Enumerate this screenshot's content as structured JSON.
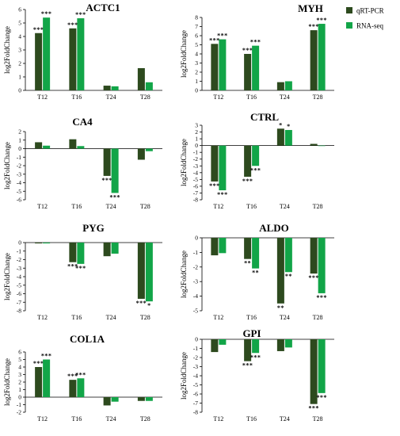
{
  "colors": {
    "qrt_pcr": "#2d4a1e",
    "rna_seq": "#12a548"
  },
  "legend": [
    {
      "name": "qRT-PCR",
      "color": "#2d4a1e"
    },
    {
      "name": "RNA-seq",
      "color": "#12a548"
    }
  ],
  "chart_data": [
    {
      "type": "bar",
      "title": "ACTC1",
      "ylabel": "log2FoldChange",
      "categories": [
        "T12",
        "T16",
        "T24",
        "T28"
      ],
      "ylim": [
        0,
        6
      ],
      "yticks": [
        0,
        1,
        2,
        3,
        4,
        5,
        6
      ],
      "series": [
        {
          "name": "qRT-PCR",
          "values": [
            4.25,
            4.6,
            0.35,
            1.65
          ],
          "sig": [
            "***",
            "***",
            "",
            ""
          ]
        },
        {
          "name": "RNA-seq",
          "values": [
            5.4,
            5.35,
            0.3,
            0.6
          ],
          "sig": [
            "***",
            "***",
            "",
            ""
          ]
        }
      ]
    },
    {
      "type": "bar",
      "title": "MYH",
      "ylabel": "log2FoldChange",
      "categories": [
        "T12",
        "T16",
        "T24",
        "T28"
      ],
      "ylim": [
        0,
        8
      ],
      "yticks": [
        0,
        1,
        2,
        3,
        4,
        5,
        6,
        7,
        8
      ],
      "series": [
        {
          "name": "qRT-PCR",
          "values": [
            5.1,
            4.0,
            0.9,
            6.6
          ],
          "sig": [
            "***",
            "***",
            "",
            "***"
          ]
        },
        {
          "name": "RNA-seq",
          "values": [
            5.6,
            4.9,
            1.0,
            7.3
          ],
          "sig": [
            "***",
            "***",
            "",
            "***"
          ]
        }
      ]
    },
    {
      "type": "bar",
      "title": "CA4",
      "ylabel": "log2FoldChange",
      "categories": [
        "T12",
        "T16",
        "T24",
        "T28"
      ],
      "ylim": [
        -6,
        2
      ],
      "yticks": [
        2,
        1,
        0,
        -1,
        -2,
        -3,
        -4,
        -5,
        -6
      ],
      "series": [
        {
          "name": "qRT-PCR",
          "values": [
            0.75,
            1.1,
            -3.2,
            -1.3
          ],
          "sig": [
            "",
            "",
            "***",
            ""
          ]
        },
        {
          "name": "RNA-seq",
          "values": [
            0.35,
            0.3,
            -5.2,
            -0.3
          ],
          "sig": [
            "",
            "",
            "***",
            ""
          ]
        }
      ]
    },
    {
      "type": "bar",
      "title": "CTRL",
      "ylabel": "log2FoldChange",
      "categories": [
        "T12",
        "T16",
        "T24",
        "T28"
      ],
      "ylim": [
        -8,
        3
      ],
      "yticks": [
        3,
        2,
        1,
        0,
        -1,
        -2,
        -3,
        -4,
        -5,
        -6,
        -7,
        -8
      ],
      "series": [
        {
          "name": "qRT-PCR",
          "values": [
            -5.3,
            -4.6,
            2.5,
            0.25
          ],
          "sig": [
            "***",
            "***",
            "*",
            ""
          ]
        },
        {
          "name": "RNA-seq",
          "values": [
            -6.6,
            -3.0,
            2.3,
            0.0
          ],
          "sig": [
            "***",
            "***",
            "*",
            ""
          ]
        }
      ]
    },
    {
      "type": "bar",
      "title": "PYG",
      "ylabel": "log2FoldChange",
      "categories": [
        "T12",
        "T16",
        "T24",
        "T28"
      ],
      "ylim": [
        -8,
        0
      ],
      "yticks": [
        0,
        -1,
        -2,
        -3,
        -4,
        -5,
        -6,
        -7,
        -8
      ],
      "series": [
        {
          "name": "qRT-PCR",
          "values": [
            -0.1,
            -2.3,
            -1.6,
            -6.6
          ],
          "sig": [
            "",
            "***",
            "",
            "***"
          ]
        },
        {
          "name": "RNA-seq",
          "values": [
            -0.1,
            -2.5,
            -1.3,
            -6.9
          ],
          "sig": [
            "",
            "***",
            "",
            "*"
          ]
        }
      ]
    },
    {
      "type": "bar",
      "title": "ALDO",
      "ylabel": "log2FoldChange",
      "categories": [
        "T12",
        "T16",
        "T24",
        "T28"
      ],
      "ylim": [
        -5,
        0
      ],
      "yticks": [
        0,
        -1,
        -2,
        -3,
        -4,
        -5
      ],
      "series": [
        {
          "name": "qRT-PCR",
          "values": [
            -1.2,
            -1.45,
            -4.5,
            -2.45
          ],
          "sig": [
            "",
            "**",
            "**",
            "***"
          ]
        },
        {
          "name": "RNA-seq",
          "values": [
            -1.05,
            -2.1,
            -2.35,
            -3.8
          ],
          "sig": [
            "",
            "**",
            "**",
            "***"
          ]
        }
      ]
    },
    {
      "type": "bar",
      "title": "COL1A",
      "ylabel": "log2FoldChange",
      "categories": [
        "T12",
        "T16",
        "T24",
        "T28"
      ],
      "ylim": [
        -2,
        6
      ],
      "yticks": [
        6,
        5,
        4,
        3,
        2,
        1,
        0,
        -1,
        -2
      ],
      "series": [
        {
          "name": "qRT-PCR",
          "values": [
            4.0,
            2.3,
            -1.1,
            -0.5
          ],
          "sig": [
            "***",
            "***",
            "",
            ""
          ]
        },
        {
          "name": "RNA-seq",
          "values": [
            5.0,
            2.5,
            -0.6,
            -0.5
          ],
          "sig": [
            "***",
            "***",
            "",
            ""
          ]
        }
      ]
    },
    {
      "type": "bar",
      "title": "GPI",
      "ylabel": "log2FoldChange",
      "categories": [
        "T12",
        "T16",
        "T24",
        "T28"
      ],
      "ylim": [
        -8,
        0
      ],
      "yticks": [
        0,
        -1,
        -2,
        -3,
        -4,
        -5,
        -6,
        -7,
        -8
      ],
      "series": [
        {
          "name": "qRT-PCR",
          "values": [
            -1.4,
            -2.4,
            -1.3,
            -7.1
          ],
          "sig": [
            "",
            "***",
            "",
            "***"
          ]
        },
        {
          "name": "RNA-seq",
          "values": [
            -0.6,
            -1.5,
            -0.9,
            -5.9
          ],
          "sig": [
            "",
            "***",
            "",
            "***"
          ]
        }
      ]
    }
  ]
}
